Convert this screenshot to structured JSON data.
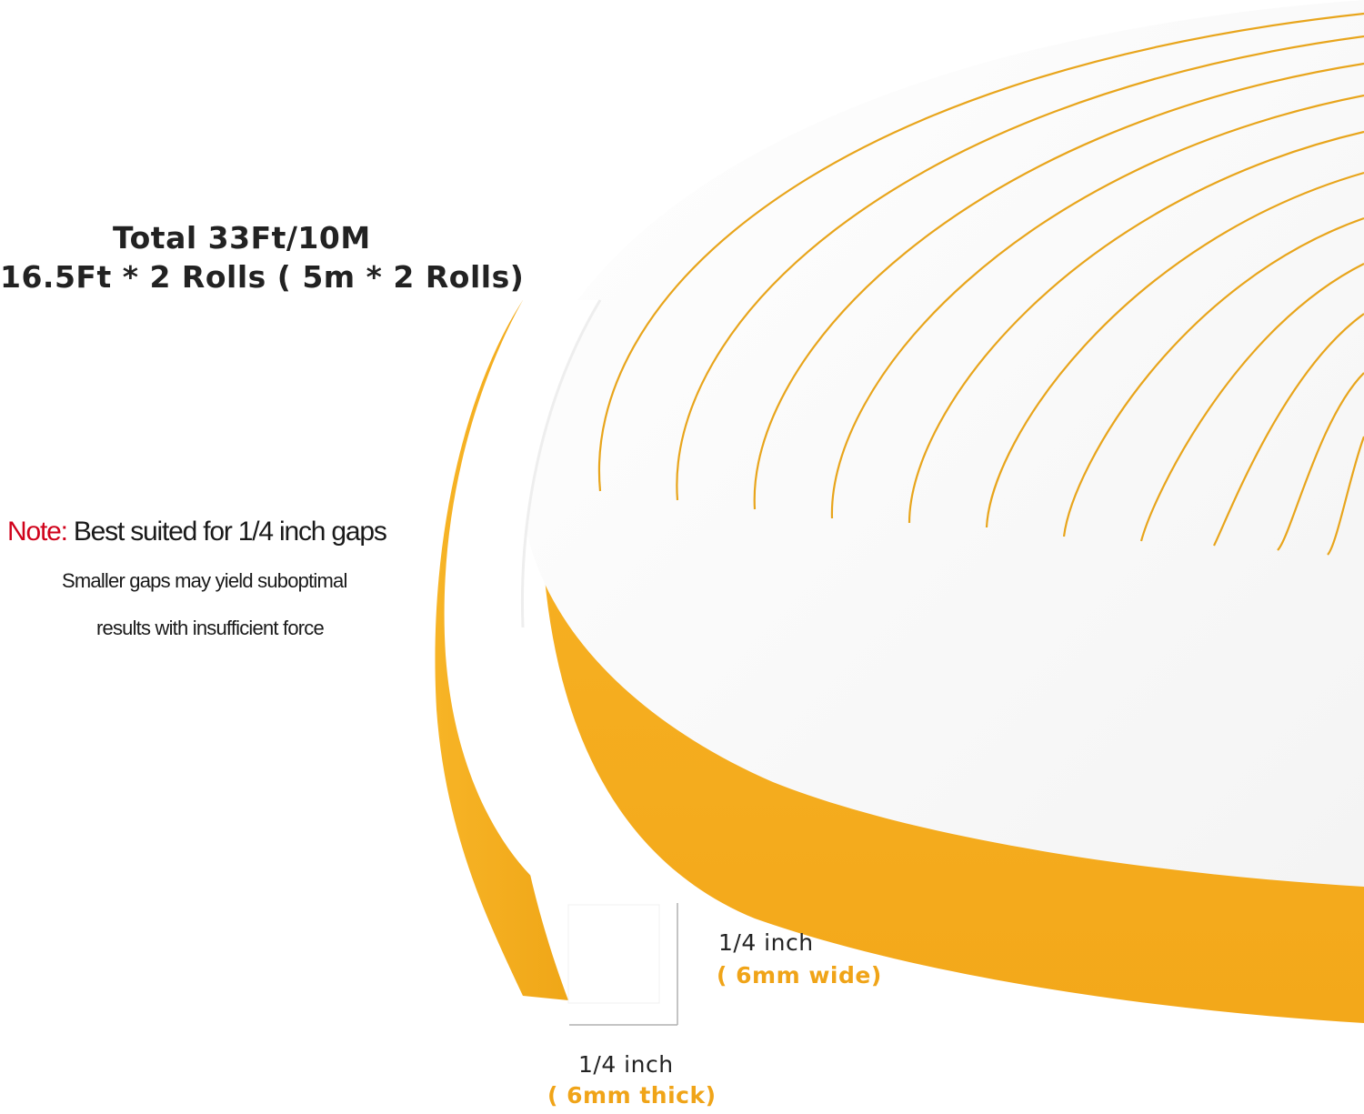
{
  "heading": {
    "total": "Total  33Ft/10M",
    "rolls": "16.5Ft * 2 Rolls ( 5m * 2 Rolls)"
  },
  "note": {
    "label": "Note:",
    "text": " Best suited for 1/4 inch gaps",
    "sub_line_1": "Smaller gaps may yield suboptimal",
    "sub_line_2": "results with insufficient force"
  },
  "dimensions": {
    "width_label": "1/4 inch",
    "width_metric": "( 6mm wide)",
    "thickness_label": "1/4 inch",
    "thickness_metric": "( 6mm  thick)"
  },
  "colors": {
    "foam_face": "#ffffff",
    "adhesive_backing": "#f5ae1e",
    "backing_line": "#e8a51c",
    "metric_text": "#f0a418",
    "note_label": "#d0021b",
    "text": "#222222"
  }
}
